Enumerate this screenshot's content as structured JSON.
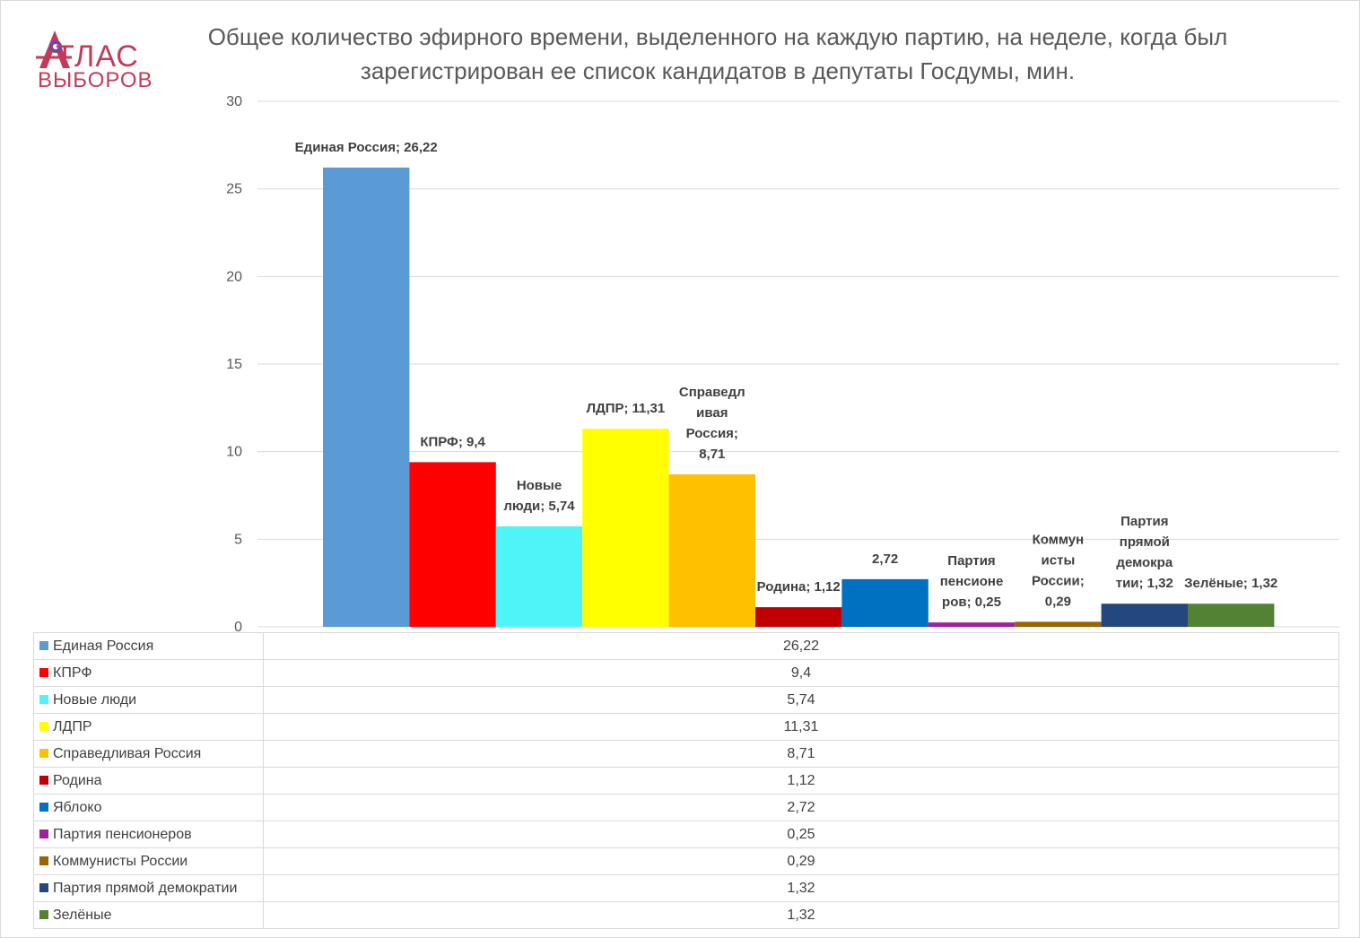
{
  "brand": {
    "line1": "ТЛАС",
    "line2": "ВЫБОРОВ"
  },
  "chart_data": {
    "type": "bar",
    "title": "Общее количество эфирного времени, выделенного на каждую партию, на неделе, когда был зарегистрирован ее список кандидатов в депутаты Госдумы, мин.",
    "xlabel": "",
    "ylabel": "",
    "ylim": [
      0,
      30
    ],
    "yticks": [
      "0",
      "5",
      "10",
      "15",
      "20",
      "25",
      "30"
    ],
    "grid": true,
    "legend": "data-table",
    "categories": [
      "Единая Россия",
      "КПРФ",
      "Новые люди",
      "ЛДПР",
      "Справедливая Россия",
      "Родина",
      "Яблоко",
      "Партия пенсионеров",
      "Коммунисты России",
      "Партия прямой демократии",
      "Зелёные"
    ],
    "values": [
      26.22,
      9.4,
      5.74,
      11.31,
      8.71,
      1.12,
      2.72,
      0.25,
      0.29,
      1.32,
      1.32
    ],
    "value_labels": [
      "26,22",
      "9,4",
      "5,74",
      "11,31",
      "8,71",
      "1,12",
      "2,72",
      "0,25",
      "0,29",
      "1,32",
      "1,32"
    ],
    "data_labels": [
      [
        "Единая Россия; 26,22"
      ],
      [
        "КПРФ; 9,4"
      ],
      [
        "Новые",
        "люди; 5,74"
      ],
      [
        "ЛДПР; 11,31"
      ],
      [
        "Справедл",
        "ивая",
        "Россия;",
        "8,71"
      ],
      [
        "Родина; 1,12"
      ],
      [
        "2,72"
      ],
      [
        "Партия",
        "пенсионе",
        "ров; 0,25"
      ],
      [
        "Коммун",
        "исты",
        "России;",
        "0,29"
      ],
      [
        "Партия",
        "прямой",
        "демокра",
        "тии; 1,32"
      ],
      [
        "Зелёные; 1,32"
      ]
    ],
    "colors": [
      "#5b9bd5",
      "#ff0000",
      "#4ff4f9",
      "#ffff00",
      "#ffc000",
      "#c00000",
      "#0070c0",
      "#a020a0",
      "#996600",
      "#254780",
      "#548235"
    ]
  }
}
